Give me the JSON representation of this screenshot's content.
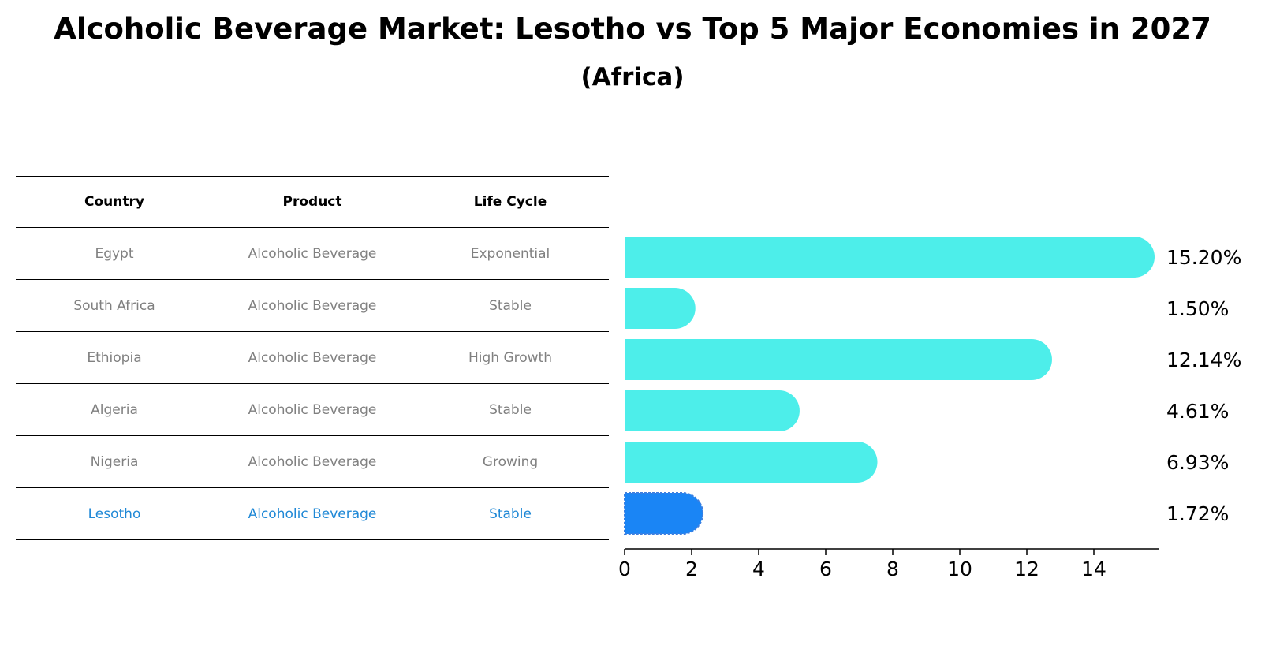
{
  "title": "Alcoholic Beverage Market: Lesotho vs Top 5 Major Economies in 2027",
  "subtitle": "(Africa)",
  "table": {
    "headers": [
      "Country",
      "Product",
      "Life Cycle"
    ],
    "rows": [
      {
        "country": "Egypt",
        "product": "Alcoholic Beverage",
        "life_cycle": "Exponential"
      },
      {
        "country": "South Africa",
        "product": "Alcoholic Beverage",
        "life_cycle": "Stable"
      },
      {
        "country": "Ethiopia",
        "product": "Alcoholic Beverage",
        "life_cycle": "High Growth"
      },
      {
        "country": "Algeria",
        "product": "Alcoholic Beverage",
        "life_cycle": "Stable"
      },
      {
        "country": "Nigeria",
        "product": "Alcoholic Beverage",
        "life_cycle": "Growing"
      },
      {
        "country": "Lesotho",
        "product": "Alcoholic Beverage",
        "life_cycle": "Stable"
      }
    ]
  },
  "chart_data": {
    "type": "bar",
    "orientation": "horizontal",
    "title": "Alcoholic Beverage Market: Lesotho vs Top 5 Major Economies in 2027",
    "subtitle": "(Africa)",
    "categories": [
      "Egypt",
      "South Africa",
      "Ethiopia",
      "Algeria",
      "Nigeria",
      "Lesotho"
    ],
    "values": [
      15.2,
      1.5,
      12.14,
      4.61,
      6.93,
      1.72
    ],
    "value_labels": [
      "15.20%",
      "1.50%",
      "12.14%",
      "4.61%",
      "6.93%",
      "1.72%"
    ],
    "highlight": "Lesotho",
    "xlim": [
      0,
      16
    ],
    "xticks": [
      0,
      2,
      4,
      6,
      8,
      10,
      12,
      14
    ],
    "xlabel": "",
    "ylabel": "",
    "grid": false,
    "colors": {
      "default": "#4deeea",
      "highlight": "#1a85f5"
    }
  },
  "colors": {
    "muted_text": "#808080",
    "highlight_text": "#1f88d6"
  }
}
